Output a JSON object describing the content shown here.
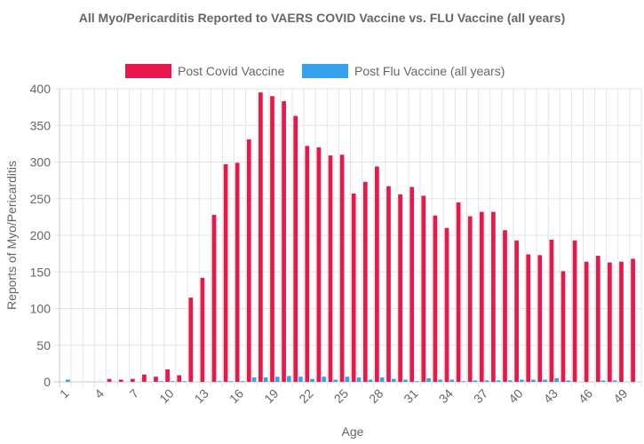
{
  "chart_data": {
    "type": "bar",
    "title": "All Myo/Pericarditis Reported to VAERS COVID Vaccine vs. FLU Vaccine (all years)",
    "xlabel": "Age",
    "ylabel": "Reports of Myo/Pericarditis",
    "ylim": [
      0,
      400
    ],
    "yticks": [
      0,
      50,
      100,
      150,
      200,
      250,
      300,
      350,
      400
    ],
    "grid": true,
    "legend_position": "top",
    "categories": [
      1,
      2,
      3,
      4,
      5,
      6,
      7,
      8,
      9,
      10,
      11,
      12,
      13,
      14,
      15,
      16,
      17,
      18,
      19,
      20,
      21,
      22,
      23,
      24,
      25,
      26,
      27,
      28,
      29,
      30,
      31,
      32,
      33,
      34,
      35,
      36,
      37,
      38,
      39,
      40,
      41,
      42,
      43,
      44,
      45,
      46,
      47,
      48,
      49,
      50
    ],
    "xtick_labels": [
      "1",
      "4",
      "7",
      "10",
      "13",
      "16",
      "19",
      "22",
      "25",
      "28",
      "31",
      "34",
      "37",
      "40",
      "43",
      "46",
      "49"
    ],
    "series": [
      {
        "name": "Post Covid Vaccine",
        "color": "#e8194a",
        "values": [
          0,
          0,
          0,
          0,
          4,
          3,
          4,
          10,
          7,
          17,
          9,
          115,
          142,
          228,
          297,
          299,
          331,
          395,
          390,
          383,
          363,
          322,
          320,
          309,
          310,
          257,
          273,
          294,
          267,
          256,
          266,
          254,
          227,
          210,
          245,
          226,
          232,
          232,
          207,
          193,
          174,
          173,
          194,
          151,
          193,
          164,
          172,
          163,
          164,
          168
        ]
      },
      {
        "name": "Post Flu Vaccine (all years)",
        "color": "#36a2eb",
        "values": [
          3,
          0,
          0,
          0,
          0,
          0,
          0,
          0,
          1,
          1,
          1,
          0,
          0,
          1,
          1,
          1,
          6,
          6,
          7,
          8,
          7,
          4,
          7,
          3,
          7,
          6,
          3,
          6,
          4,
          3,
          1,
          5,
          3,
          3,
          1,
          2,
          2,
          2,
          2,
          3,
          3,
          3,
          5,
          2,
          0,
          0,
          2,
          2,
          0,
          0
        ]
      }
    ]
  }
}
